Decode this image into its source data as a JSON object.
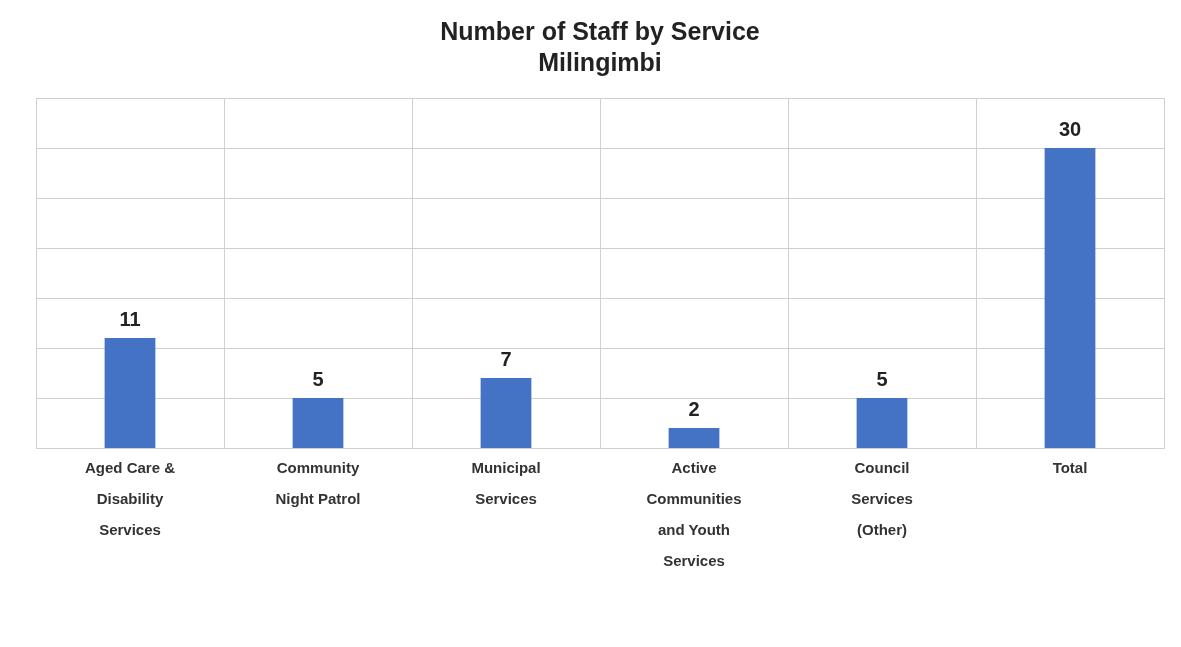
{
  "chart_data": {
    "type": "bar",
    "title": "Number of Staff by Service",
    "subtitle": "Milingimbi",
    "categories": [
      "Aged Care & Disability Services",
      "Community Night Patrol",
      "Municipal Services",
      "Active Communities and Youth Services",
      "Council Services (Other)",
      "Total"
    ],
    "values": [
      11,
      5,
      7,
      2,
      5,
      30
    ],
    "color": "#4472c4",
    "ylim": [
      0,
      35
    ],
    "yticks": [
      {
        "value": 0,
        "label": null
      },
      {
        "value": 5,
        "label": null
      },
      {
        "value": 10,
        "label": null
      },
      {
        "value": 15,
        "label": null
      },
      {
        "value": 20,
        "label": null
      },
      {
        "value": 25,
        "label": null
      },
      {
        "value": 30,
        "label": null
      },
      {
        "value": 35,
        "label": null
      }
    ],
    "tick_labels": "x",
    "grid": true,
    "data_labels": true
  }
}
